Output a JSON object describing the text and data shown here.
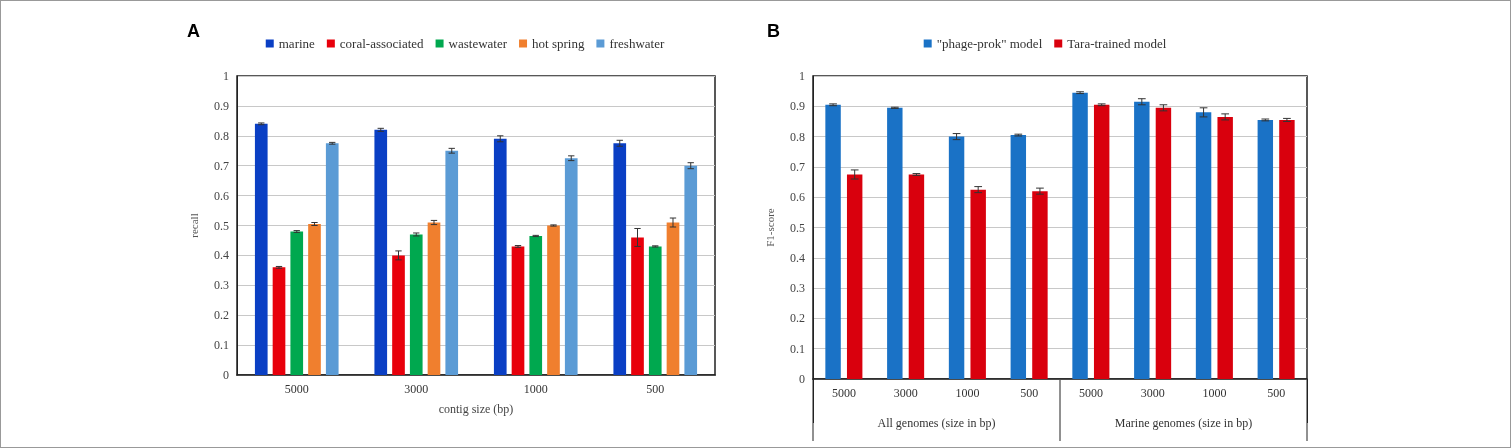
{
  "chart_data": [
    {
      "type": "bar",
      "title": "A",
      "xlabel": "contig size (bp)",
      "ylabel": "recall",
      "categories": [
        "5000",
        "3000",
        "1000",
        "500"
      ],
      "series": [
        {
          "name": "marine",
          "color": "#0a3fc4",
          "values": [
            0.84,
            0.82,
            0.79,
            0.775
          ],
          "errors": [
            0.003,
            0.005,
            0.01,
            0.01
          ]
        },
        {
          "name": "coral-associated",
          "color": "#e8000b",
          "values": [
            0.36,
            0.4,
            0.43,
            0.46
          ],
          "errors": [
            0.003,
            0.015,
            0.003,
            0.03
          ]
        },
        {
          "name": "wastewater",
          "color": "#00a84f",
          "values": [
            0.48,
            0.47,
            0.465,
            0.43
          ],
          "errors": [
            0.003,
            0.005,
            0.002,
            0.002
          ]
        },
        {
          "name": "hot spring",
          "color": "#f07f2e",
          "values": [
            0.505,
            0.51,
            0.5,
            0.51
          ],
          "errors": [
            0.005,
            0.007,
            0.002,
            0.015
          ]
        },
        {
          "name": "freshwater",
          "color": "#5b9bd5",
          "values": [
            0.775,
            0.75,
            0.725,
            0.7
          ],
          "errors": [
            0.003,
            0.008,
            0.008,
            0.01
          ]
        }
      ],
      "ylim": [
        0,
        1
      ],
      "yticks": [
        0,
        0.1,
        0.2,
        0.3,
        0.4,
        0.5,
        0.6,
        0.7,
        0.8,
        0.9,
        1
      ],
      "grid": "y",
      "legend": "top"
    },
    {
      "type": "bar",
      "title": "B",
      "ylabel": "F1-score",
      "categories": [
        "5000",
        "3000",
        "1000",
        "500",
        "5000",
        "3000",
        "1000",
        "500"
      ],
      "annotations": [
        "All genomes (size in bp)",
        "Marine genomes (size in bp)"
      ],
      "series": [
        {
          "name": "\"phage-prok\" model",
          "color": "#1a72c6",
          "values": [
            0.905,
            0.895,
            0.8,
            0.805,
            0.945,
            0.915,
            0.88,
            0.855
          ],
          "errors": [
            0.003,
            0.002,
            0.01,
            0.003,
            0.003,
            0.01,
            0.015,
            0.003
          ]
        },
        {
          "name": "Tara-trained model",
          "color": "#d9000d",
          "values": [
            0.675,
            0.675,
            0.625,
            0.62,
            0.905,
            0.895,
            0.865,
            0.855
          ],
          "errors": [
            0.015,
            0.003,
            0.01,
            0.01,
            0.003,
            0.01,
            0.01,
            0.005
          ]
        }
      ],
      "ylim": [
        0,
        1
      ],
      "yticks": [
        0,
        0.1,
        0.2,
        0.3,
        0.4,
        0.5,
        0.6,
        0.7,
        0.8,
        0.9,
        1
      ],
      "grid": "y",
      "legend": "top"
    }
  ]
}
